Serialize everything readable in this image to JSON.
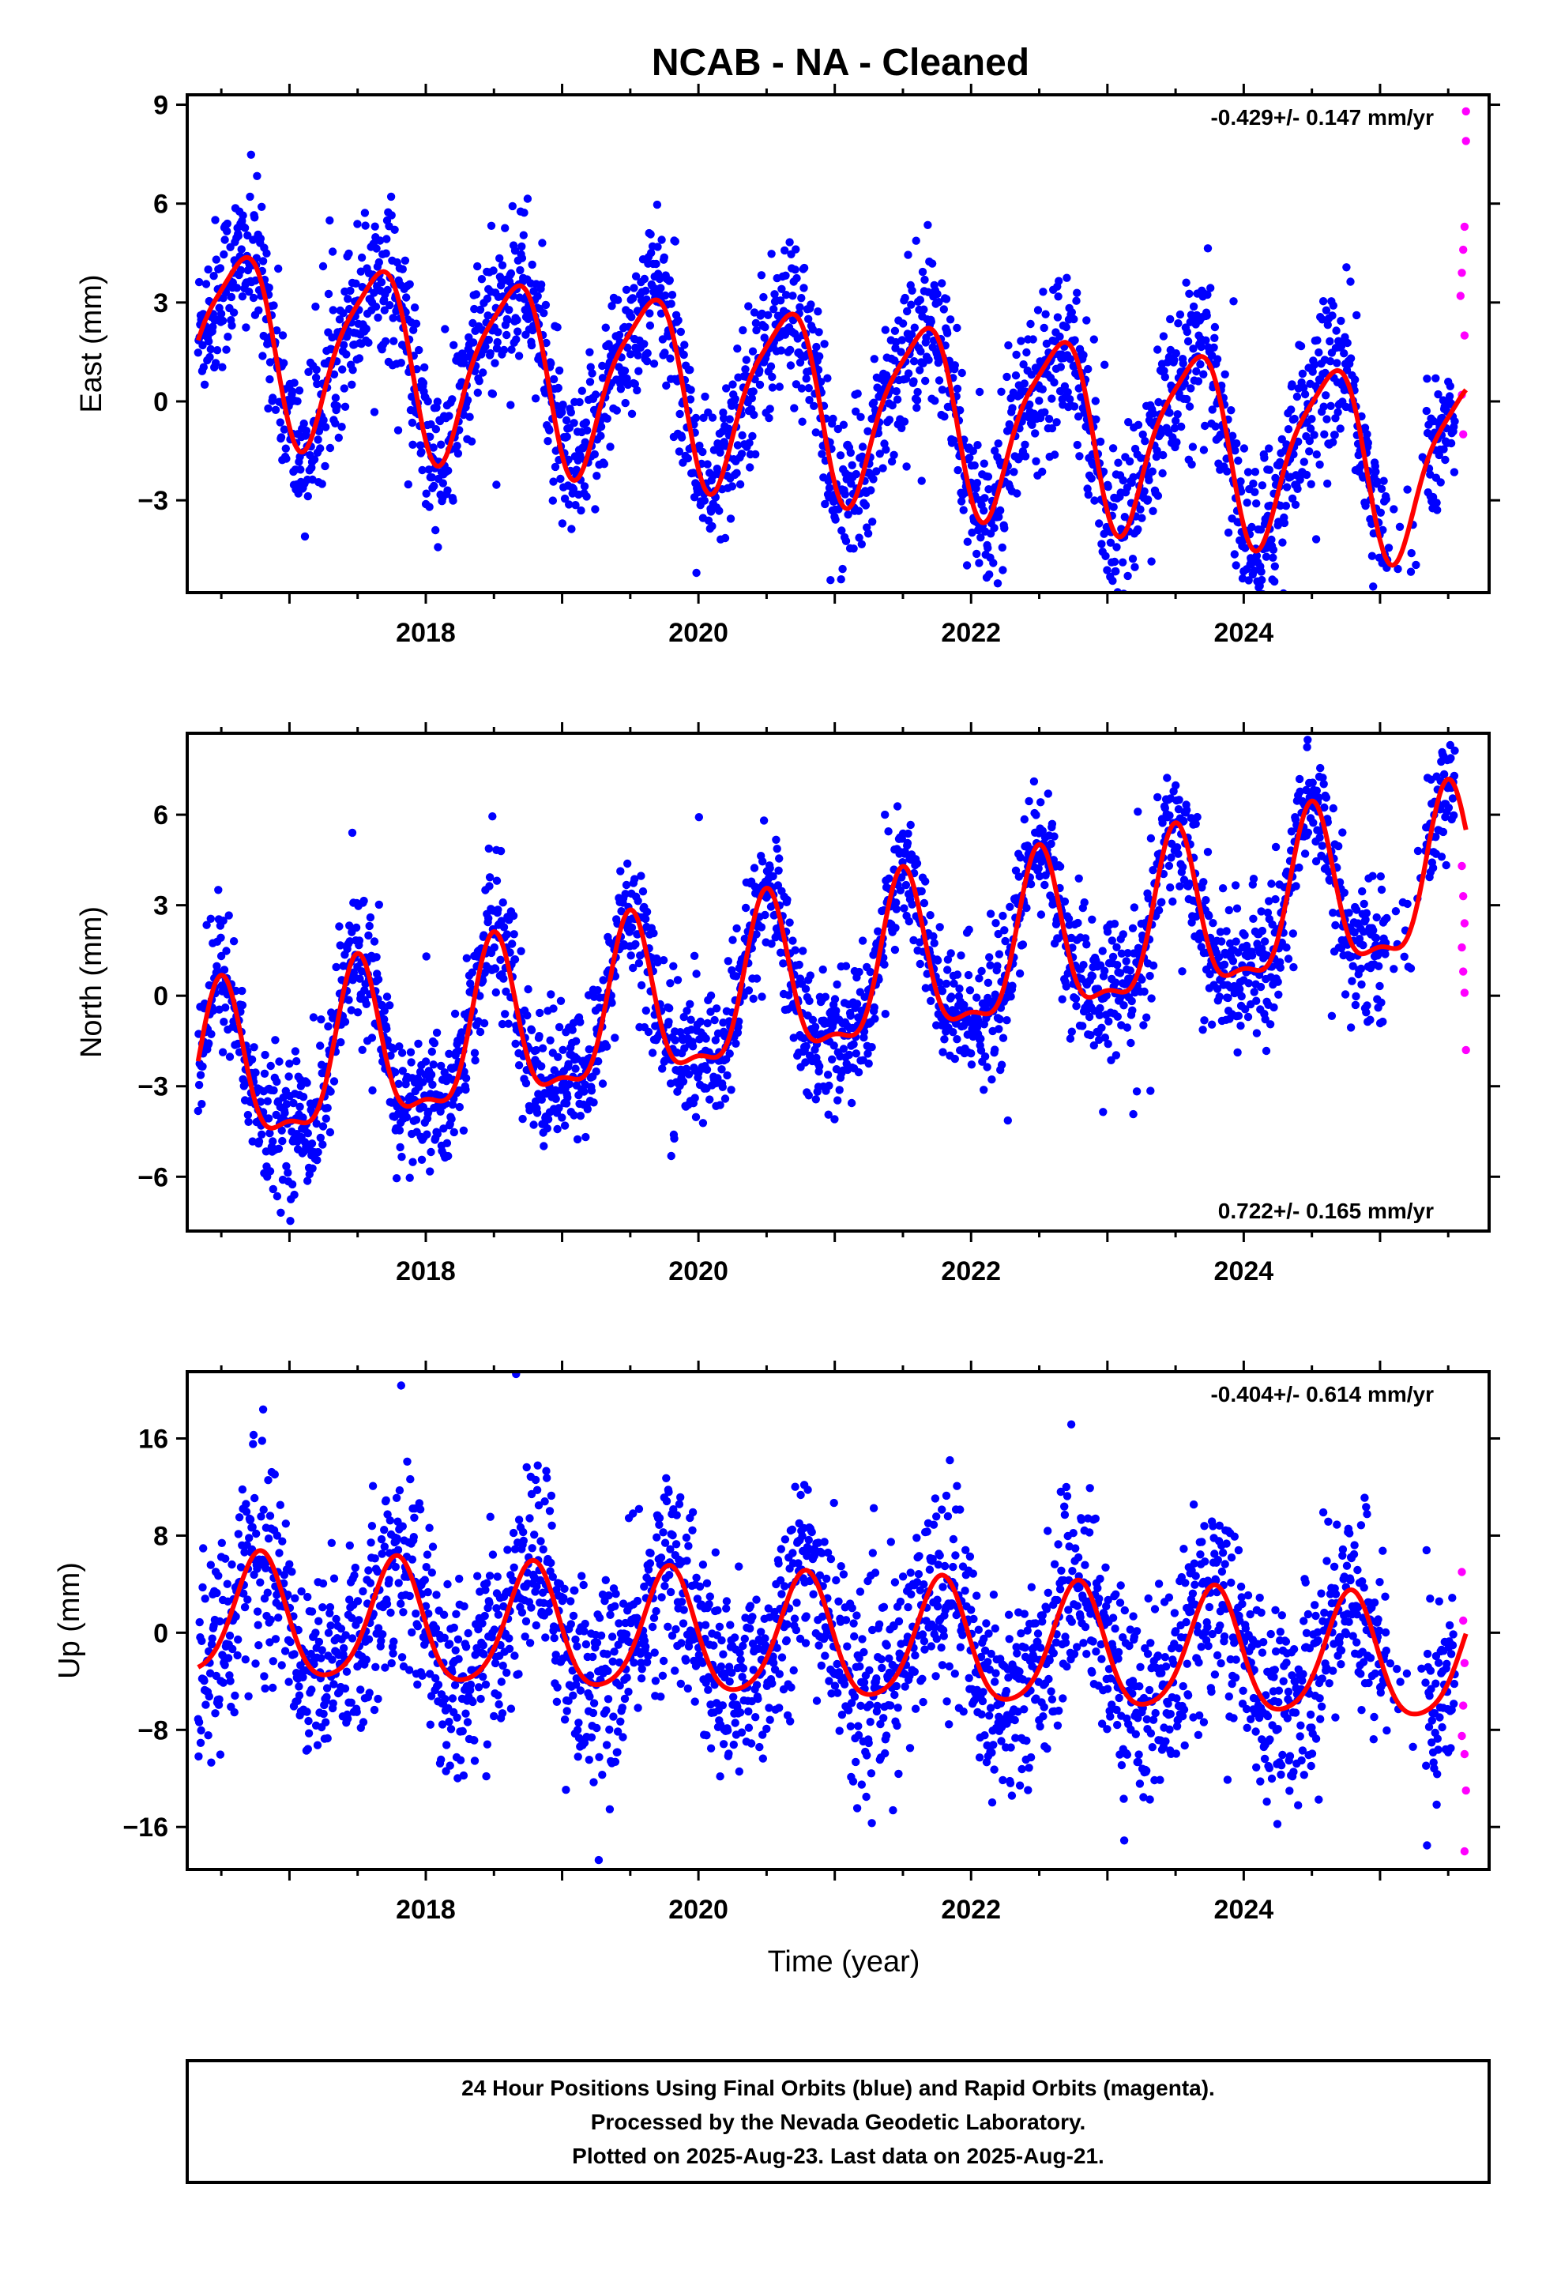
{
  "title": "NCAB  - NA - Cleaned",
  "x_axis_label": "Time (year)",
  "footer": {
    "line1": "24 Hour Positions Using Final Orbits (blue) and Rapid Orbits (magenta).",
    "line2": "Processed by the Nevada Geodetic Laboratory.",
    "line3": "Plotted on 2025-Aug-23. Last data on 2025-Aug-21."
  },
  "colors": {
    "final_orbits": "#0000ff",
    "rapid_orbits": "#ff00ff",
    "model_fit": "#ff0000",
    "frame": "#000000"
  },
  "chart_data": [
    {
      "type": "scatter",
      "component": "East",
      "ylabel": "East (mm)",
      "rate_label": "-0.429+/- 0.147 mm/yr",
      "rate_position": "top-right",
      "xlim": [
        2016.25,
        2025.8
      ],
      "ylim": [
        -5.8,
        9.3
      ],
      "yticks": [
        -3,
        0,
        3,
        6,
        9
      ],
      "xticks": [
        2018,
        2020,
        2022,
        2024
      ],
      "xtick_labels": [
        "2018",
        "2020",
        "2022",
        "2024"
      ],
      "rate_mm_per_yr": -0.429,
      "model": {
        "offset": 2.0,
        "rate": -0.429,
        "annual_amp": 2.7,
        "annual_phase_peak": 0.62,
        "semiannual_amp": 0.6,
        "semiannual_phase_peak": 0.3
      },
      "noise_mm": 1.2,
      "rapid_points": [
        {
          "x": 2025.59,
          "y": 3.2
        },
        {
          "x": 2025.6,
          "y": 3.9
        },
        {
          "x": 2025.61,
          "y": 4.6
        },
        {
          "x": 2025.62,
          "y": 5.3
        },
        {
          "x": 2025.63,
          "y": 7.9
        },
        {
          "x": 2025.63,
          "y": 8.8
        },
        {
          "x": 2025.61,
          "y": -1.0
        },
        {
          "x": 2025.62,
          "y": 2.0
        },
        {
          "x": 2025.6,
          "y": 0.2
        }
      ]
    },
    {
      "type": "scatter",
      "component": "North",
      "ylabel": "North (mm)",
      "rate_label": "0.722+/- 0.165 mm/yr",
      "rate_position": "bottom-right",
      "xlim": [
        2016.25,
        2025.8
      ],
      "ylim": [
        -7.8,
        8.7
      ],
      "yticks": [
        -6,
        -3,
        0,
        3,
        6
      ],
      "xticks": [
        2018,
        2020,
        2022,
        2024
      ],
      "xtick_labels": [
        "2018",
        "2020",
        "2022",
        "2024"
      ],
      "rate_mm_per_yr": 0.722,
      "model": {
        "offset": -3.0,
        "rate": 0.722,
        "annual_amp": 2.6,
        "annual_phase_peak": 0.5,
        "semiannual_amp": 0.9,
        "semiannual_phase_peak": 0.0
      },
      "noise_mm": 1.1,
      "rapid_points": [
        {
          "x": 2025.6,
          "y": 4.3
        },
        {
          "x": 2025.61,
          "y": 3.3
        },
        {
          "x": 2025.62,
          "y": 2.4
        },
        {
          "x": 2025.6,
          "y": 1.6
        },
        {
          "x": 2025.61,
          "y": 0.8
        },
        {
          "x": 2025.62,
          "y": 0.1
        },
        {
          "x": 2025.63,
          "y": -1.8
        }
      ]
    },
    {
      "type": "scatter",
      "component": "Up",
      "ylabel": "Up (mm)",
      "rate_label": "-0.404+/- 0.614 mm/yr",
      "rate_position": "top-right",
      "xlim": [
        2016.25,
        2025.8
      ],
      "ylim": [
        -19.5,
        21.5
      ],
      "yticks": [
        -16,
        -8,
        0,
        8,
        16
      ],
      "xticks": [
        2018,
        2020,
        2022,
        2024
      ],
      "xtick_labels": [
        "2018",
        "2020",
        "2022",
        "2024"
      ],
      "rate_mm_per_yr": -0.404,
      "model": {
        "offset": 1.2,
        "rate": -0.404,
        "annual_amp": 5.0,
        "annual_phase_peak": 0.78,
        "semiannual_amp": 0.8,
        "semiannual_phase_peak": 0.3
      },
      "noise_mm": 4.0,
      "rapid_points": [
        {
          "x": 2025.6,
          "y": 5.0
        },
        {
          "x": 2025.61,
          "y": 1.0
        },
        {
          "x": 2025.62,
          "y": -2.5
        },
        {
          "x": 2025.61,
          "y": -6.0
        },
        {
          "x": 2025.6,
          "y": -8.5
        },
        {
          "x": 2025.62,
          "y": -10.0
        },
        {
          "x": 2025.63,
          "y": -13.0
        },
        {
          "x": 2025.62,
          "y": -18.0
        }
      ]
    }
  ]
}
